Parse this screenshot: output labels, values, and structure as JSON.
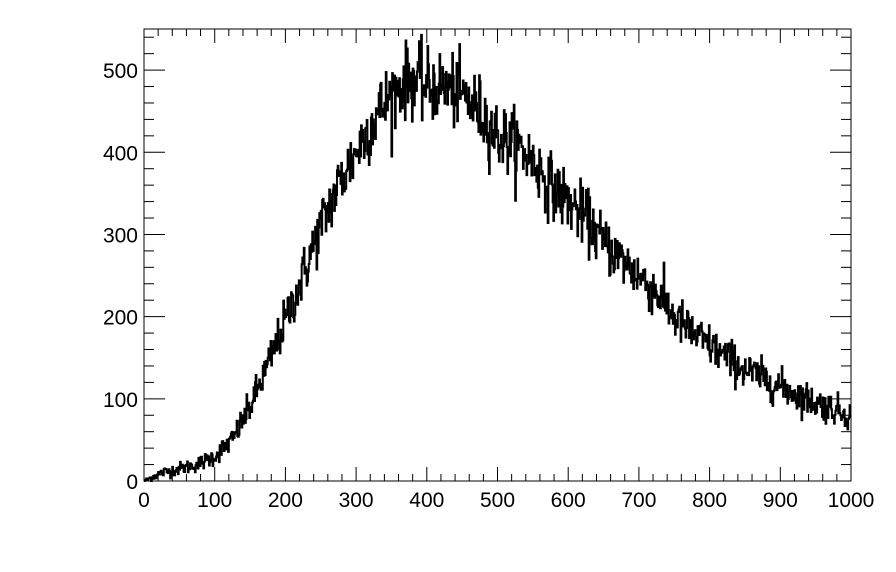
{
  "chart_data": {
    "type": "line",
    "title": "",
    "xlabel": "",
    "ylabel": "",
    "xlim": [
      0,
      1000
    ],
    "ylim": [
      0,
      550
    ],
    "grid": false,
    "legend": "none",
    "line_color": "#000000",
    "x_ticks": [
      0,
      100,
      200,
      300,
      400,
      500,
      600,
      700,
      800,
      900,
      1000
    ],
    "x_tick_labels": [
      "0",
      "100",
      "200",
      "300",
      "400",
      "500",
      "600",
      "700",
      "800",
      "900",
      "1000"
    ],
    "y_ticks": [
      0,
      100,
      200,
      300,
      400,
      500
    ],
    "y_tick_labels": [
      "0",
      "100",
      "200",
      "300",
      "400",
      "500"
    ],
    "series": [
      {
        "x": [
          0,
          25,
          50,
          75,
          100,
          125,
          150,
          175,
          200,
          225,
          250,
          275,
          300,
          325,
          350,
          375,
          400,
          425,
          450,
          475,
          500,
          525,
          550,
          575,
          600,
          625,
          650,
          675,
          700,
          725,
          750,
          775,
          800,
          825,
          850,
          875,
          900,
          925,
          950,
          975,
          1000
        ],
        "values": [
          0,
          10,
          15,
          20,
          30,
          50,
          90,
          140,
          195,
          250,
          310,
          360,
          400,
          440,
          470,
          490,
          480,
          480,
          470,
          450,
          420,
          410,
          390,
          360,
          340,
          320,
          290,
          270,
          250,
          230,
          200,
          180,
          165,
          150,
          135,
          125,
          115,
          105,
          95,
          88,
          80
        ]
      }
    ]
  }
}
